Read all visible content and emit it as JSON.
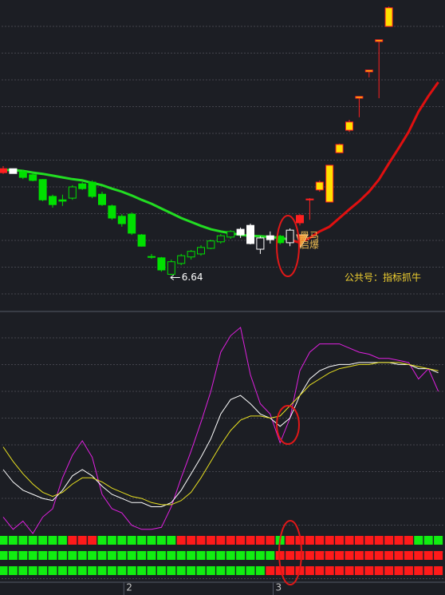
{
  "chart_data": [
    {
      "type": "candlestick",
      "open": [
        9.01,
        9.1,
        9.03,
        8.96,
        8.85,
        8.46,
        8.38,
        8.42,
        8.75,
        8.79,
        8.51,
        8.24,
        8.0,
        8.05,
        7.57,
        7.07,
        7.04,
        6.66,
        6.91,
        7.06,
        7.13,
        7.26,
        7.41,
        7.52,
        7.57,
        7.79,
        7.24,
        7.55,
        7.54,
        7.39,
        7.85,
        8.38,
        8.61,
        8.33,
        9.47,
        9.99,
        10.73,
        11.34,
        12.04,
        12.39
      ],
      "close": [
        9.1,
        8.99,
        8.9,
        8.83,
        8.38,
        8.27,
        8.35,
        8.68,
        8.64,
        8.46,
        8.27,
        7.96,
        7.83,
        7.61,
        7.31,
        7.06,
        6.76,
        6.95,
        7.09,
        7.19,
        7.28,
        7.43,
        7.55,
        7.65,
        7.7,
        7.37,
        7.5,
        7.46,
        7.39,
        7.68,
        8.02,
        8.4,
        8.79,
        9.18,
        9.66,
        10.18,
        10.77,
        11.38,
        12.08,
        12.82
      ],
      "high": [
        9.16,
        9.1,
        9.07,
        8.98,
        8.86,
        8.5,
        8.5,
        8.72,
        8.79,
        8.83,
        8.57,
        8.27,
        8.05,
        8.09,
        7.59,
        7.13,
        7.06,
        7.0,
        7.13,
        7.22,
        7.33,
        7.46,
        7.59,
        7.68,
        7.74,
        7.83,
        7.54,
        7.65,
        7.57,
        7.72,
        8.05,
        8.42,
        8.83,
        9.18,
        9.68,
        10.23,
        10.77,
        11.38,
        12.08,
        12.85
      ],
      "low": [
        8.98,
        8.99,
        8.86,
        8.81,
        8.35,
        8.2,
        8.24,
        8.38,
        8.61,
        8.42,
        8.24,
        7.92,
        7.76,
        7.57,
        7.3,
        7.02,
        6.72,
        6.64,
        6.87,
        7.0,
        7.09,
        7.24,
        7.37,
        7.48,
        7.5,
        7.35,
        7.13,
        7.37,
        7.35,
        7.31,
        7.79,
        7.92,
        8.57,
        8.33,
        9.46,
        9.95,
        10.29,
        11.21,
        10.73,
        12.39
      ],
      "fills": [
        "#ff2020",
        "#ffffff",
        "#00e000",
        "#00e000",
        "#00e000",
        "#00e000",
        "#00e000",
        "none",
        "#00e000",
        "#00e000",
        "#00e000",
        "#00e000",
        "#00e000",
        "#00e000",
        "#00e000",
        "#00e000",
        "#00e000",
        "none",
        "none",
        "none",
        "none",
        "none",
        "none",
        "none",
        "#ffffff",
        "#ffffff",
        "none",
        "#ffffff",
        "#00e000",
        "none",
        "#ff2020",
        "#ff2020",
        "#ffe000",
        "#ffe000",
        "#ffe000",
        "#ffe000",
        "#ffe000",
        "#ffe000",
        "#ffe000",
        "#ffe000"
      ],
      "edges": [
        "#ff2020",
        "#ffffff",
        "#00e000",
        "#00e000",
        "#00e000",
        "#00e000",
        "#00e000",
        "#00e000",
        "#00e000",
        "#00e000",
        "#00e000",
        "#00e000",
        "#00e000",
        "#00e000",
        "#00e000",
        "#00e000",
        "#00e000",
        "#00e000",
        "#00e000",
        "#00e000",
        "#00e000",
        "#00e000",
        "#00e000",
        "#00e000",
        "#ffffff",
        "#ffffff",
        "#ffffff",
        "#ffffff",
        "#00e000",
        "#ffffff",
        "#ff2020",
        "#ff2020",
        "#ff2020",
        "#ff2020",
        "#ff2020",
        "#ff2020",
        "#ff2020",
        "#ff2020",
        "#ff2020",
        "#ff2020"
      ],
      "series": [
        {
          "color": "#22dd22",
          "values": [
            9.07,
            9.07,
            9.05,
            9.01,
            8.98,
            8.94,
            8.9,
            8.86,
            8.83,
            8.77,
            8.72,
            8.64,
            8.57,
            8.48,
            8.38,
            8.29,
            8.18,
            8.07,
            7.96,
            7.87,
            7.78,
            7.7,
            7.65,
            7.61,
            7.57,
            7.55,
            7.54,
            7.52,
            7.5,
            7.46,
            null,
            null,
            null,
            null,
            null,
            null,
            null,
            null,
            null,
            null,
            null,
            null,
            null,
            null,
            null
          ]
        },
        {
          "color": "#e01010",
          "values": [
            null,
            null,
            null,
            null,
            null,
            null,
            null,
            null,
            null,
            null,
            null,
            null,
            null,
            null,
            null,
            null,
            null,
            null,
            null,
            null,
            null,
            null,
            null,
            null,
            null,
            null,
            null,
            null,
            null,
            7.46,
            7.39,
            7.5,
            7.65,
            7.76,
            7.96,
            8.16,
            8.35,
            8.57,
            8.85,
            9.22,
            9.58,
            9.95,
            10.42,
            10.78,
            11.1
          ]
        }
      ],
      "ylim": [
        5.8,
        13.0
      ],
      "signal_labels": [
        "黑马",
        "启爆"
      ],
      "watermark": "公共号：指标抓牛"
    },
    {
      "type": "line",
      "series": [
        {
          "color": "#e020e0",
          "values": [
            8,
            2,
            6,
            0,
            8,
            12,
            27,
            38,
            45,
            37,
            19,
            12,
            10,
            4,
            2,
            2,
            3,
            13,
            27,
            40,
            54,
            69,
            88,
            96,
            100,
            77,
            63,
            58,
            44,
            56,
            79,
            88,
            92,
            92,
            92,
            90,
            88,
            87,
            85,
            85,
            84,
            83,
            75,
            80,
            69
          ]
        },
        {
          "color": "#ffffff",
          "values": [
            31,
            25,
            21,
            19,
            17,
            16,
            21,
            28,
            31,
            28,
            23,
            19,
            17,
            15,
            15,
            13,
            13,
            15,
            21,
            29,
            37,
            46,
            58,
            65,
            67,
            63,
            58,
            56,
            52,
            56,
            67,
            75,
            79,
            81,
            82,
            82,
            83,
            83,
            83,
            83,
            82,
            82,
            80,
            80,
            78
          ]
        },
        {
          "color": "#e8e020",
          "values": [
            42,
            35,
            29,
            24,
            20,
            18,
            20,
            24,
            27,
            27,
            25,
            22,
            20,
            18,
            17,
            15,
            14,
            14,
            16,
            20,
            27,
            35,
            43,
            50,
            55,
            57,
            57,
            56,
            57,
            62,
            67,
            72,
            75,
            78,
            80,
            81,
            82,
            82,
            83,
            83,
            83,
            82,
            81,
            80,
            79
          ]
        }
      ],
      "ylim": [
        0,
        100
      ],
      "signal_rows": [
        [
          0,
          0,
          0,
          0,
          0,
          0,
          0,
          1,
          1,
          1,
          0,
          0,
          0,
          0,
          0,
          0,
          0,
          0,
          1,
          1,
          1,
          1,
          1,
          1,
          1,
          1,
          1,
          1,
          0,
          1,
          1,
          1,
          1,
          1,
          1,
          1,
          1,
          1,
          1,
          1,
          1,
          1,
          0,
          0,
          0
        ],
        [
          0,
          0,
          0,
          0,
          0,
          0,
          0,
          0,
          0,
          0,
          0,
          0,
          0,
          0,
          0,
          0,
          0,
          0,
          0,
          0,
          0,
          0,
          0,
          0,
          0,
          0,
          0,
          0,
          1,
          1,
          1,
          1,
          1,
          1,
          1,
          1,
          1,
          1,
          1,
          1,
          1,
          1,
          1,
          1,
          1
        ],
        [
          0,
          0,
          0,
          0,
          0,
          0,
          0,
          0,
          0,
          0,
          0,
          0,
          0,
          0,
          0,
          0,
          0,
          0,
          0,
          0,
          0,
          0,
          0,
          0,
          0,
          0,
          0,
          1,
          1,
          1,
          1,
          1,
          1,
          1,
          1,
          1,
          1,
          1,
          1,
          1,
          1,
          1,
          1,
          1,
          1
        ]
      ],
      "up_color": "#ff1a1a",
      "down_color": "#11ee11",
      "xticks": [
        {
          "value": 12.2,
          "label": "2"
        },
        {
          "value": 27.3,
          "label": "3"
        }
      ]
    }
  ]
}
